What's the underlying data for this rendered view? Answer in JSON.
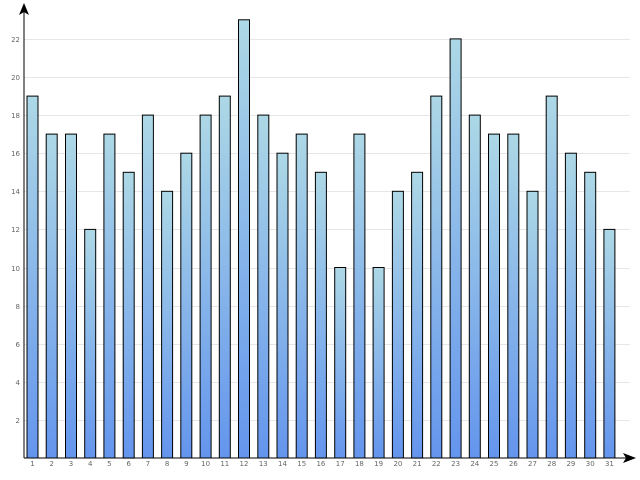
{
  "chart_data": {
    "type": "bar",
    "title": "",
    "xlabel": "",
    "ylabel": "",
    "categories": [
      "1",
      "2",
      "3",
      "4",
      "5",
      "6",
      "7",
      "8",
      "9",
      "10",
      "11",
      "12",
      "13",
      "14",
      "15",
      "16",
      "17",
      "18",
      "19",
      "20",
      "21",
      "22",
      "23",
      "24",
      "25",
      "26",
      "27",
      "28",
      "29",
      "30",
      "31"
    ],
    "values": [
      19,
      17,
      17,
      12,
      17,
      15,
      18,
      14,
      16,
      18,
      19,
      23,
      18,
      16,
      17,
      15,
      10,
      17,
      10,
      14,
      15,
      19,
      22,
      18,
      17,
      17,
      14,
      19,
      16,
      15,
      12
    ],
    "ylim": [
      0,
      24
    ],
    "y_ticks": [
      2,
      4,
      6,
      8,
      10,
      12,
      14,
      16,
      18,
      20,
      22
    ],
    "y_tick_labels": [
      "2",
      "4",
      "6",
      "8",
      "10",
      "12",
      "14",
      "16",
      "18",
      "20",
      "22"
    ],
    "grid": true,
    "legend": "none",
    "colors": {
      "bar_top": "#add8e6",
      "bar_bottom": "#6495ed",
      "bar_stroke": "#000000",
      "grid": "#e6e6e6",
      "axis": "#000000"
    }
  }
}
